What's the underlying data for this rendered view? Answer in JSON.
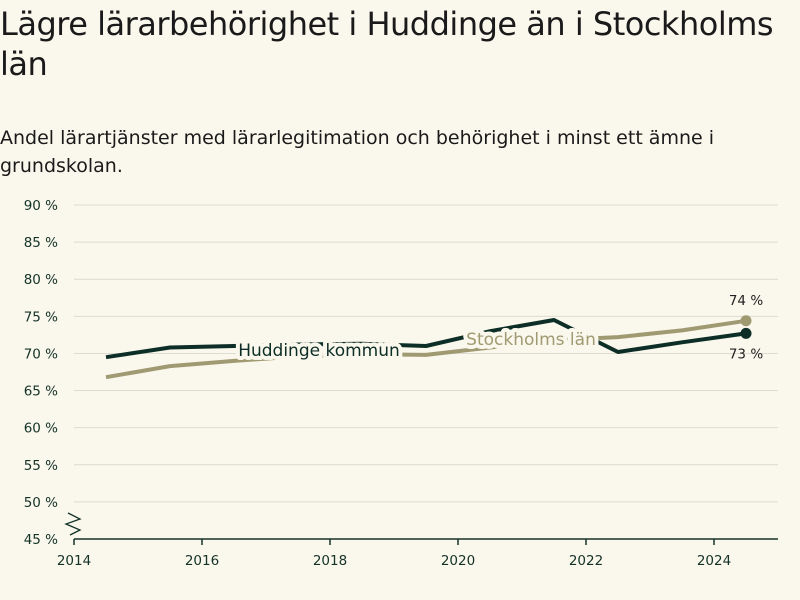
{
  "title": "Lägre lärarbehörighet i Huddinge än i Stockholms län",
  "subtitle": "Andel lärartjänster med lärarlegitimation och behörighet i minst ett ämne i grundskolan.",
  "colors": {
    "background": "#faf7ec",
    "huddinge": "#0d2e26",
    "stockholm": "#a09a72",
    "grid": "#dcdcd2",
    "axis": "#143328"
  },
  "chart_data": {
    "type": "line",
    "x_tick_labels": [
      "2014",
      "2016",
      "2018",
      "2020",
      "2022",
      "2024"
    ],
    "y_tick_labels": [
      "45 %",
      "50 %",
      "55 %",
      "60 %",
      "65 %",
      "70 %",
      "75 %",
      "80 %",
      "85 %",
      "90 %"
    ],
    "xlim": [
      2014,
      2025
    ],
    "ylim": [
      45,
      90
    ],
    "grid": true,
    "axis_break": true,
    "series": [
      {
        "name": "Huddinge kommun",
        "color": "#0d2e26",
        "x": [
          2014.5,
          2015.5,
          2016.5,
          2017.5,
          2018.5,
          2019.5,
          2020.5,
          2021.5,
          2022.5,
          2023.5,
          2024.5
        ],
        "values": [
          69.5,
          70.8,
          71.0,
          71.2,
          71.3,
          71.0,
          73.0,
          74.5,
          70.2,
          71.5,
          72.7
        ],
        "end_label": "73 %"
      },
      {
        "name": "Stockholms län",
        "color": "#a09a72",
        "x": [
          2014.5,
          2015.5,
          2016.5,
          2017.5,
          2018.5,
          2019.5,
          2020.5,
          2021.5,
          2022.5,
          2023.5,
          2024.5
        ],
        "values": [
          66.8,
          68.3,
          69.0,
          69.6,
          69.9,
          69.8,
          70.8,
          71.8,
          72.2,
          73.1,
          74.4
        ],
        "end_label": "74 %"
      }
    ]
  }
}
